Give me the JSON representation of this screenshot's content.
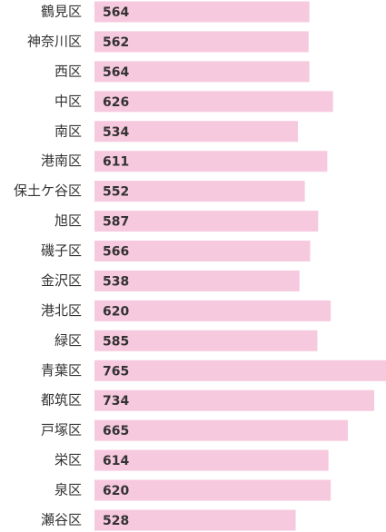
{
  "chart_data": {
    "type": "bar",
    "orientation": "horizontal",
    "categories": [
      "鶴見区",
      "神奈川区",
      "西区",
      "中区",
      "南区",
      "港南区",
      "保土ケ谷区",
      "旭区",
      "磯子区",
      "金沢区",
      "港北区",
      "緑区",
      "青葉区",
      "都筑区",
      "戸塚区",
      "栄区",
      "泉区",
      "瀬谷区"
    ],
    "values": [
      564,
      562,
      564,
      626,
      534,
      611,
      552,
      587,
      566,
      538,
      620,
      585,
      765,
      734,
      665,
      614,
      620,
      528
    ],
    "color": "#f7c9de"
  }
}
